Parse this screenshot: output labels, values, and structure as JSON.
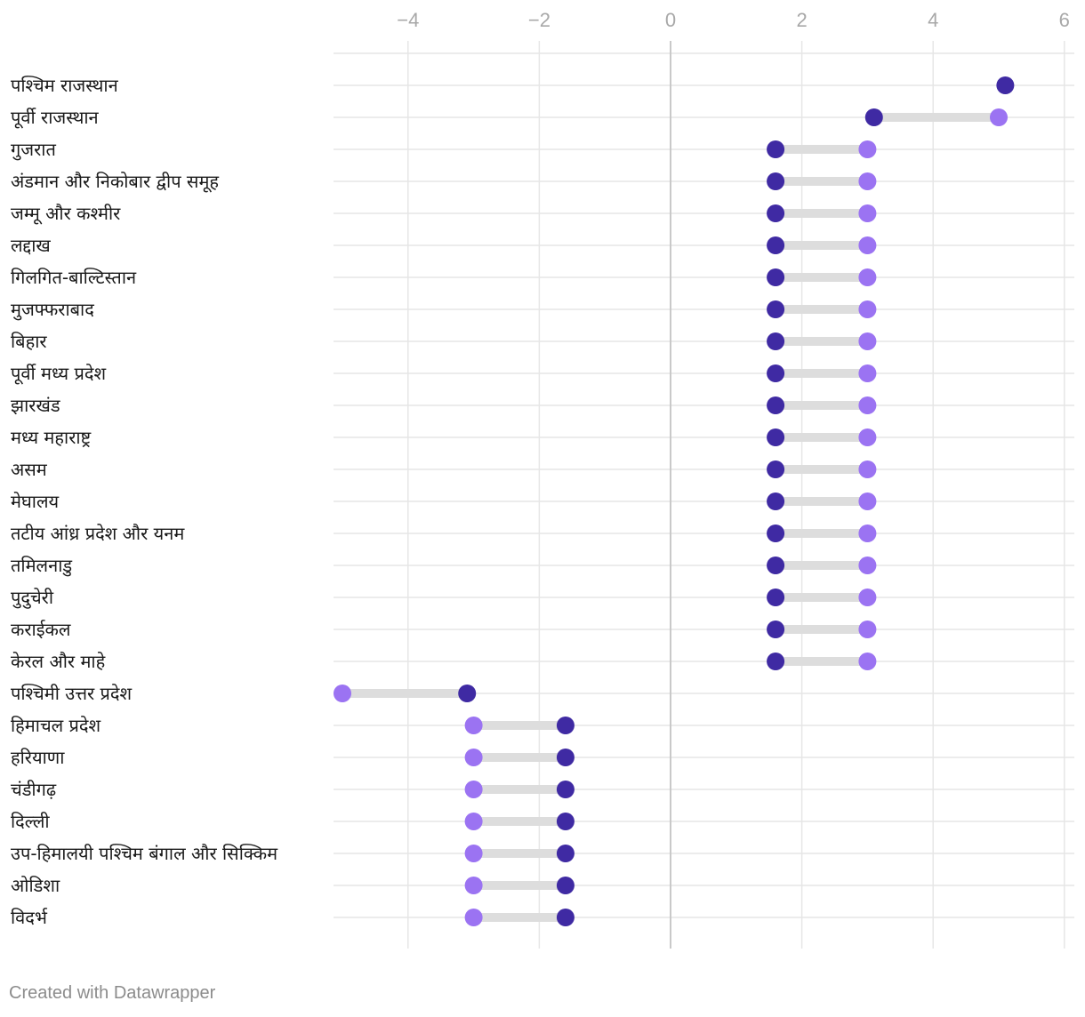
{
  "chart_data": {
    "type": "dot-range",
    "title": "",
    "xlabel": "",
    "ylabel": "",
    "xlim": [
      -5.2,
      6.2
    ],
    "x_ticks": [
      -4,
      -2,
      0,
      2,
      4,
      6
    ],
    "x_tick_labels": [
      "−4",
      "−2",
      "0",
      "2",
      "4",
      "6"
    ],
    "grid": true,
    "colors": {
      "series_a": "#3f2aa3",
      "series_b": "#9b73f2",
      "connector": "#dddddd",
      "gridline": "#e6e6e6",
      "zero_line": "#c9c9c9"
    },
    "categories": [
      "पश्चिम राजस्थान",
      "पूर्वी राजस्थान",
      "गुजरात",
      "अंडमान और निकोबार द्वीप समूह",
      "जम्मू और कश्मीर",
      "लद्दाख",
      "गिलगित-बाल्टिस्तान",
      "मुजफ्फराबाद",
      "बिहार",
      "पूर्वी मध्य प्रदेश",
      "झारखंड",
      "मध्य महाराष्ट्र",
      "असम",
      "मेघालय",
      "तटीय आंध्र प्रदेश और यनम",
      "तमिलनाडु",
      "पुदुचेरी",
      "कराईकल",
      "केरल और माहे",
      "पश्चिमी उत्तर प्रदेश",
      "हिमाचल प्रदेश",
      "हरियाणा",
      "चंडीगढ़",
      "दिल्ली",
      "उप-हिमालयी पश्चिम बंगाल और सिक्किम",
      "ओडिशा",
      "विदर्भ"
    ],
    "series": [
      {
        "name": "series_a",
        "color": "#3f2aa3",
        "values": [
          5.1,
          3.1,
          1.6,
          1.6,
          1.6,
          1.6,
          1.6,
          1.6,
          1.6,
          1.6,
          1.6,
          1.6,
          1.6,
          1.6,
          1.6,
          1.6,
          1.6,
          1.6,
          1.6,
          -3.1,
          -1.6,
          -1.6,
          -1.6,
          -1.6,
          -1.6,
          -1.6,
          -1.6
        ]
      },
      {
        "name": "series_b",
        "color": "#9b73f2",
        "values": [
          null,
          5.0,
          3.0,
          3.0,
          3.0,
          3.0,
          3.0,
          3.0,
          3.0,
          3.0,
          3.0,
          3.0,
          3.0,
          3.0,
          3.0,
          3.0,
          3.0,
          3.0,
          3.0,
          -5.0,
          -3.0,
          -3.0,
          -3.0,
          -3.0,
          -3.0,
          -3.0,
          -3.0
        ]
      }
    ]
  },
  "footer": {
    "credit": "Created with Datawrapper"
  }
}
